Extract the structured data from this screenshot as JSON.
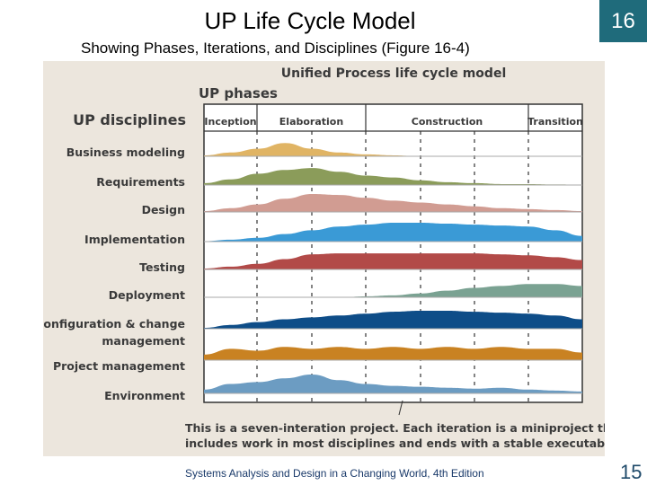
{
  "slide": {
    "title": "UP Life Cycle Model",
    "subtitle": "Showing Phases, Iterations, and Disciplines (Figure 16-4)",
    "badge": "16",
    "footer": "Systems Analysis and Design in a Changing World, 4th Edition",
    "page_number": "15",
    "badge_color": "#1f6b7b"
  },
  "figure": {
    "title": "Unified Process life cycle model",
    "phases_label": "UP phases",
    "disciplines_label": "UP disciplines",
    "phases": [
      "Inception",
      "Elaboration",
      "Construction",
      "Transition"
    ],
    "iterations": 7,
    "caption_line1": "This is a seven-interation project. Each iteration is a miniproject that",
    "caption_line2": "includes work in most disciplines and ends with a stable executable.",
    "disciplines": [
      {
        "name": "Business modeling",
        "color": "#e0b464",
        "activity": [
          0.05,
          0.2,
          0.4,
          0.7,
          0.4,
          0.2,
          0.1,
          0.05,
          0,
          0,
          0,
          0,
          0,
          0,
          0
        ]
      },
      {
        "name": "Requirements",
        "color": "#8b9c5a",
        "activity": [
          0.1,
          0.3,
          0.6,
          0.8,
          0.9,
          0.7,
          0.5,
          0.4,
          0.25,
          0.15,
          0.1,
          0.05,
          0.05,
          0.03,
          0.02
        ]
      },
      {
        "name": "Design",
        "color": "#d19c92",
        "activity": [
          0.05,
          0.2,
          0.4,
          0.7,
          0.95,
          0.9,
          0.75,
          0.6,
          0.5,
          0.4,
          0.3,
          0.2,
          0.15,
          0.1,
          0.05
        ]
      },
      {
        "name": "Implementation",
        "color": "#3a9ad6",
        "activity": [
          0.02,
          0.1,
          0.2,
          0.4,
          0.6,
          0.8,
          0.9,
          1,
          1,
          0.95,
          0.9,
          0.85,
          0.8,
          0.6,
          0.3
        ]
      },
      {
        "name": "Testing",
        "color": "#b24a48",
        "activity": [
          0.05,
          0.15,
          0.3,
          0.55,
          0.8,
          0.85,
          0.85,
          0.85,
          0.85,
          0.85,
          0.85,
          0.8,
          0.75,
          0.65,
          0.5
        ]
      },
      {
        "name": "Deployment",
        "color": "#7aa292",
        "activity": [
          0,
          0,
          0,
          0,
          0,
          0,
          0.05,
          0.1,
          0.2,
          0.35,
          0.5,
          0.6,
          0.7,
          0.7,
          0.6
        ]
      },
      {
        "name": "Configuration & change management",
        "color": "#0e4d88",
        "activity": [
          0.05,
          0.2,
          0.35,
          0.5,
          0.6,
          0.7,
          0.8,
          0.9,
          0.95,
          0.95,
          0.9,
          0.85,
          0.8,
          0.7,
          0.5
        ]
      },
      {
        "name": "Project management",
        "color": "#c98222",
        "activity": [
          0.3,
          0.6,
          0.5,
          0.7,
          0.6,
          0.7,
          0.6,
          0.7,
          0.6,
          0.7,
          0.6,
          0.7,
          0.6,
          0.6,
          0.4
        ]
      },
      {
        "name": "Environment",
        "color": "#6c9cc2",
        "activity": [
          0.2,
          0.5,
          0.6,
          0.8,
          1,
          0.7,
          0.5,
          0.4,
          0.35,
          0.3,
          0.25,
          0.3,
          0.2,
          0.15,
          0.1
        ]
      }
    ]
  }
}
